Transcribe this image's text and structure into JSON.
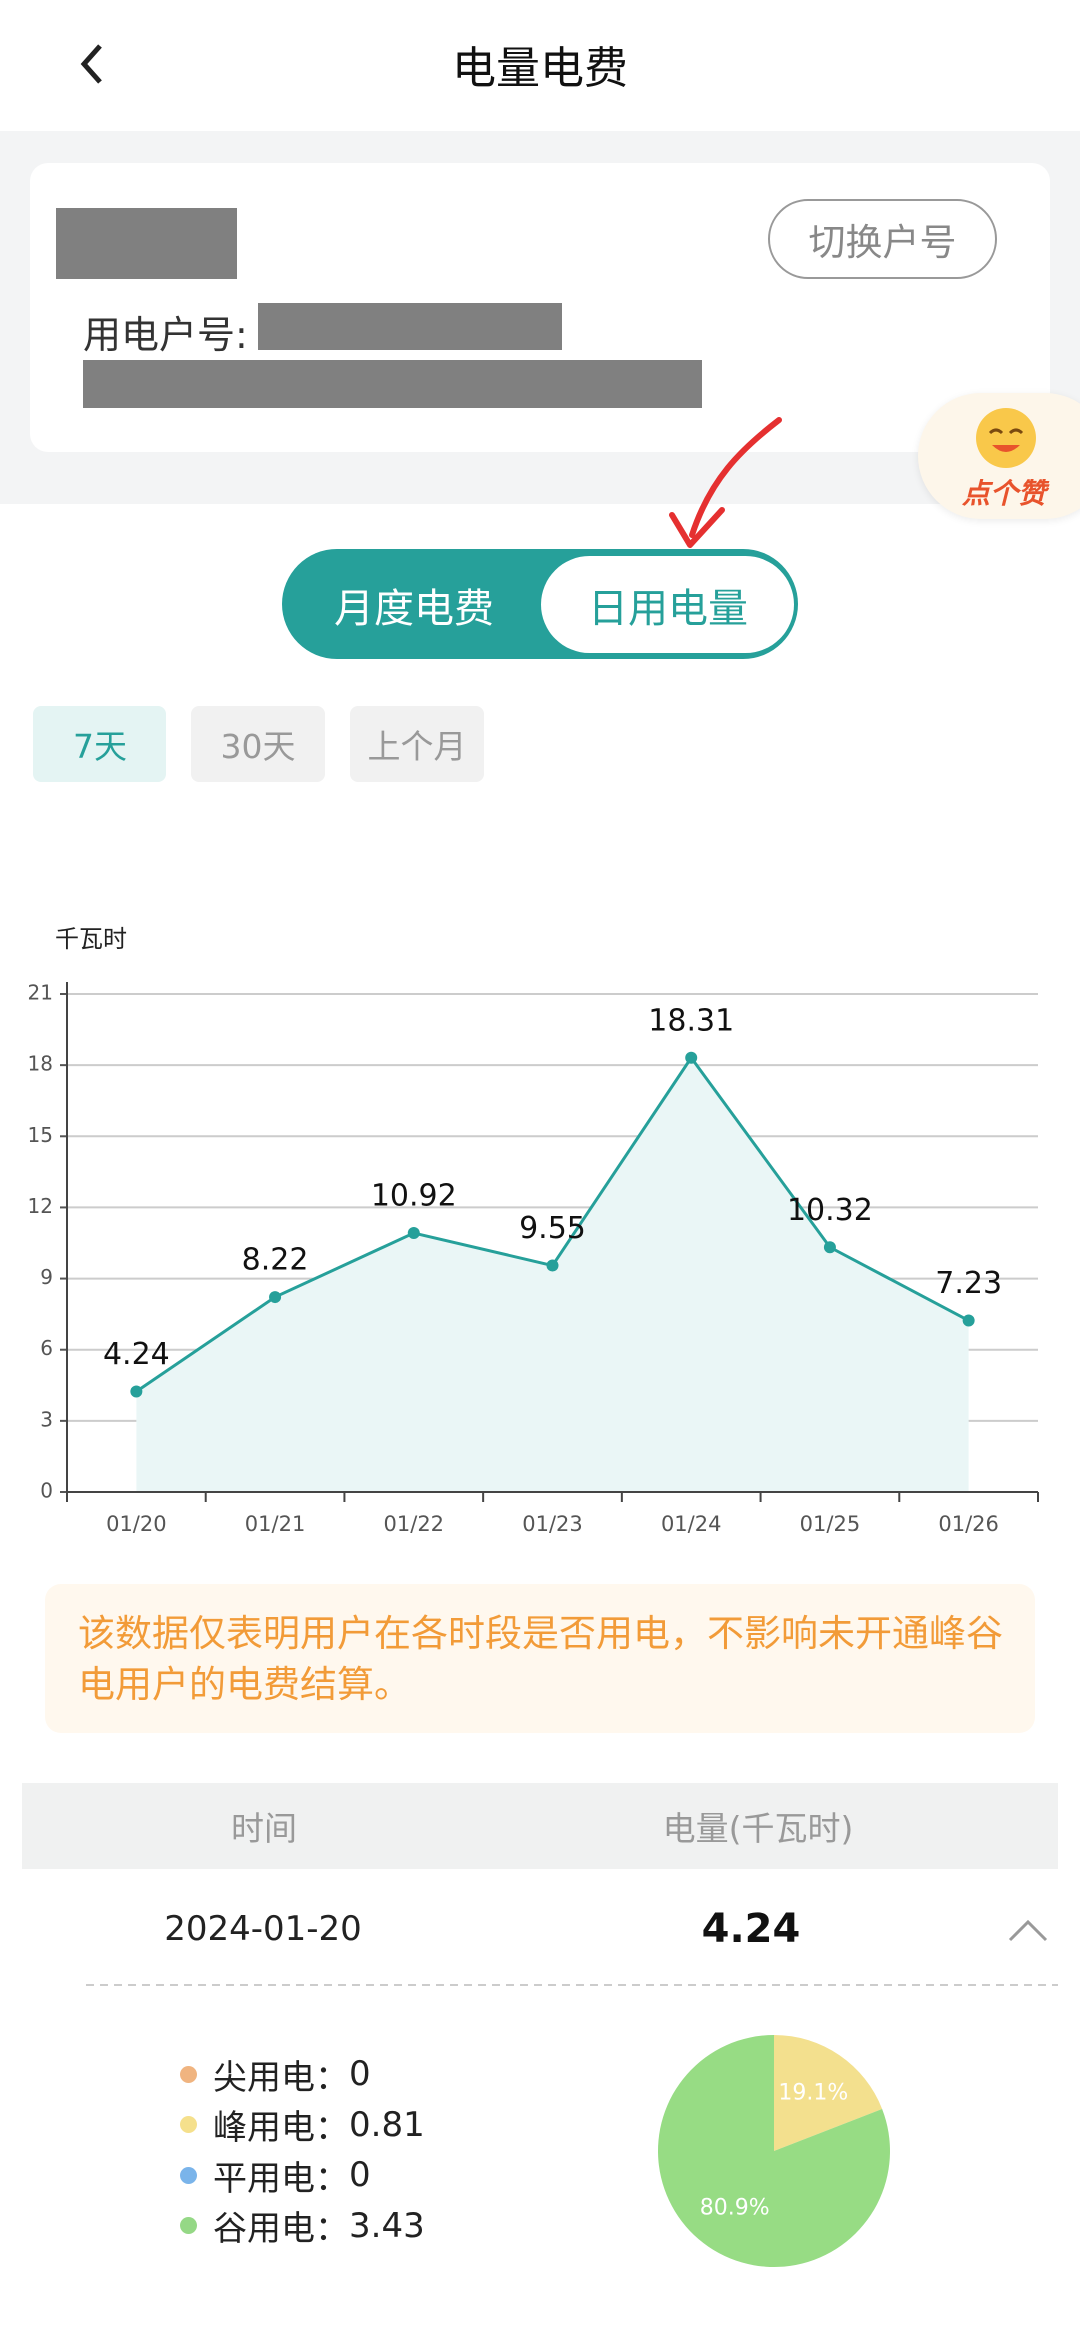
{
  "header": {
    "title": "电量电费"
  },
  "account": {
    "number_label": "用电户号:",
    "switch_button": "切换户号"
  },
  "like_badge": "点个赞",
  "view_tabs": [
    "月度电费",
    "日用电量"
  ],
  "range_buttons": [
    "7天",
    "30天",
    "上个月"
  ],
  "chart_data": [
    {
      "type": "line",
      "y_label": "千瓦时",
      "categories": [
        "01/20",
        "01/21",
        "01/22",
        "01/23",
        "01/24",
        "01/25",
        "01/26"
      ],
      "values": [
        4.24,
        8.22,
        10.92,
        9.55,
        18.31,
        10.32,
        7.23
      ],
      "color": "#26a09a",
      "area_color": "#eaf6f6",
      "ylim": [
        0,
        21
      ],
      "yticks": [
        0,
        3,
        6,
        9,
        12,
        15,
        18,
        21
      ],
      "grid": true
    },
    {
      "type": "pie",
      "values": [
        19.1,
        80.9
      ],
      "value_labels": [
        "19.1%",
        "80.9%"
      ],
      "colors": [
        "#f3e08e",
        "#97dc84"
      ]
    }
  ],
  "notice": "该数据仅表明用户在各时段是否用电，不影响未开通峰谷电用户的电费结算。",
  "table": {
    "headers": [
      "时间",
      "电量(千瓦时)"
    ],
    "rows": [
      [
        "2024-01-20",
        4.24
      ]
    ]
  },
  "usage_breakdown": [
    {
      "label": "尖用电：",
      "value": 0,
      "color": "#f0b480"
    },
    {
      "label": "峰用电：",
      "value": 0.81,
      "color": "#f5e08c"
    },
    {
      "label": "平用电：",
      "value": 0,
      "color": "#7ab4ea"
    },
    {
      "label": "谷用电：",
      "value": 3.43,
      "color": "#95d886"
    }
  ]
}
